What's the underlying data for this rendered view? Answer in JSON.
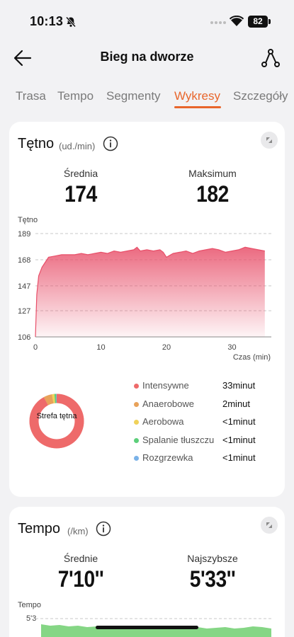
{
  "status_bar": {
    "time": "10:13",
    "battery": "82"
  },
  "header": {
    "title": "Bieg na dworze"
  },
  "tabs": [
    {
      "label": "Trasa",
      "active": false
    },
    {
      "label": "Tempo",
      "active": false
    },
    {
      "label": "Segmenty",
      "active": false
    },
    {
      "label": "Wykresy",
      "active": true
    },
    {
      "label": "Szczegóły",
      "active": false
    }
  ],
  "heart_rate": {
    "title": "Tętno",
    "unit": "(ud./min)",
    "avg_label": "Średnia",
    "avg_value": "174",
    "max_label": "Maksimum",
    "max_value": "182",
    "chart_data": {
      "type": "area",
      "ylabel": "Tętno",
      "xlabel": "Czas (min)",
      "ylim": [
        106,
        189
      ],
      "xlim": [
        0,
        36
      ],
      "y_ticks": [
        "189",
        "168",
        "147",
        "127",
        "106"
      ],
      "x_ticks": [
        "0",
        "10",
        "20",
        "30"
      ],
      "x": [
        0,
        0.2,
        0.5,
        1,
        1.5,
        2,
        3,
        4,
        5,
        6,
        7,
        8,
        9,
        10,
        11,
        12,
        13,
        14,
        15,
        15.5,
        16,
        17,
        18,
        19,
        19.5,
        20,
        21,
        22,
        23,
        24,
        25,
        26,
        27,
        28,
        29,
        30,
        31,
        32,
        33,
        34,
        35
      ],
      "y": [
        106,
        140,
        155,
        162,
        166,
        170,
        171,
        172,
        172,
        172,
        173,
        172,
        173,
        174,
        173,
        175,
        174,
        175,
        176,
        178,
        175,
        176,
        175,
        176,
        174,
        170,
        173,
        174,
        175,
        173,
        175,
        176,
        177,
        176,
        174,
        175,
        176,
        178,
        177,
        176,
        175
      ],
      "grid": true,
      "color": "#e8506a"
    },
    "zones_center_label": "Strefa tętna",
    "zones": [
      {
        "name": "Intensywne",
        "time": "33minut",
        "color": "#ee6a6a",
        "share": 0.92
      },
      {
        "name": "Anaerobowe",
        "time": "2minut",
        "color": "#e8a25a",
        "share": 0.05
      },
      {
        "name": "Aerobowa",
        "time": "<1minut",
        "color": "#f0d25a",
        "share": 0.015
      },
      {
        "name": "Spalanie tłuszczu",
        "time": "<1minut",
        "color": "#5ccf7a",
        "share": 0.01
      },
      {
        "name": "Rozgrzewka",
        "time": "<1minut",
        "color": "#7ab2e8",
        "share": 0.005
      }
    ]
  },
  "pace": {
    "title": "Tempo",
    "unit": "(/km)",
    "avg_label": "Średnie",
    "avg_value": "7'10''",
    "fast_label": "Najszybsze",
    "fast_value": "5'33''",
    "chart_data": {
      "type": "area",
      "ylabel": "Tempo",
      "y_ticks": [
        "5'3"
      ],
      "color": "#5cc85c"
    }
  }
}
